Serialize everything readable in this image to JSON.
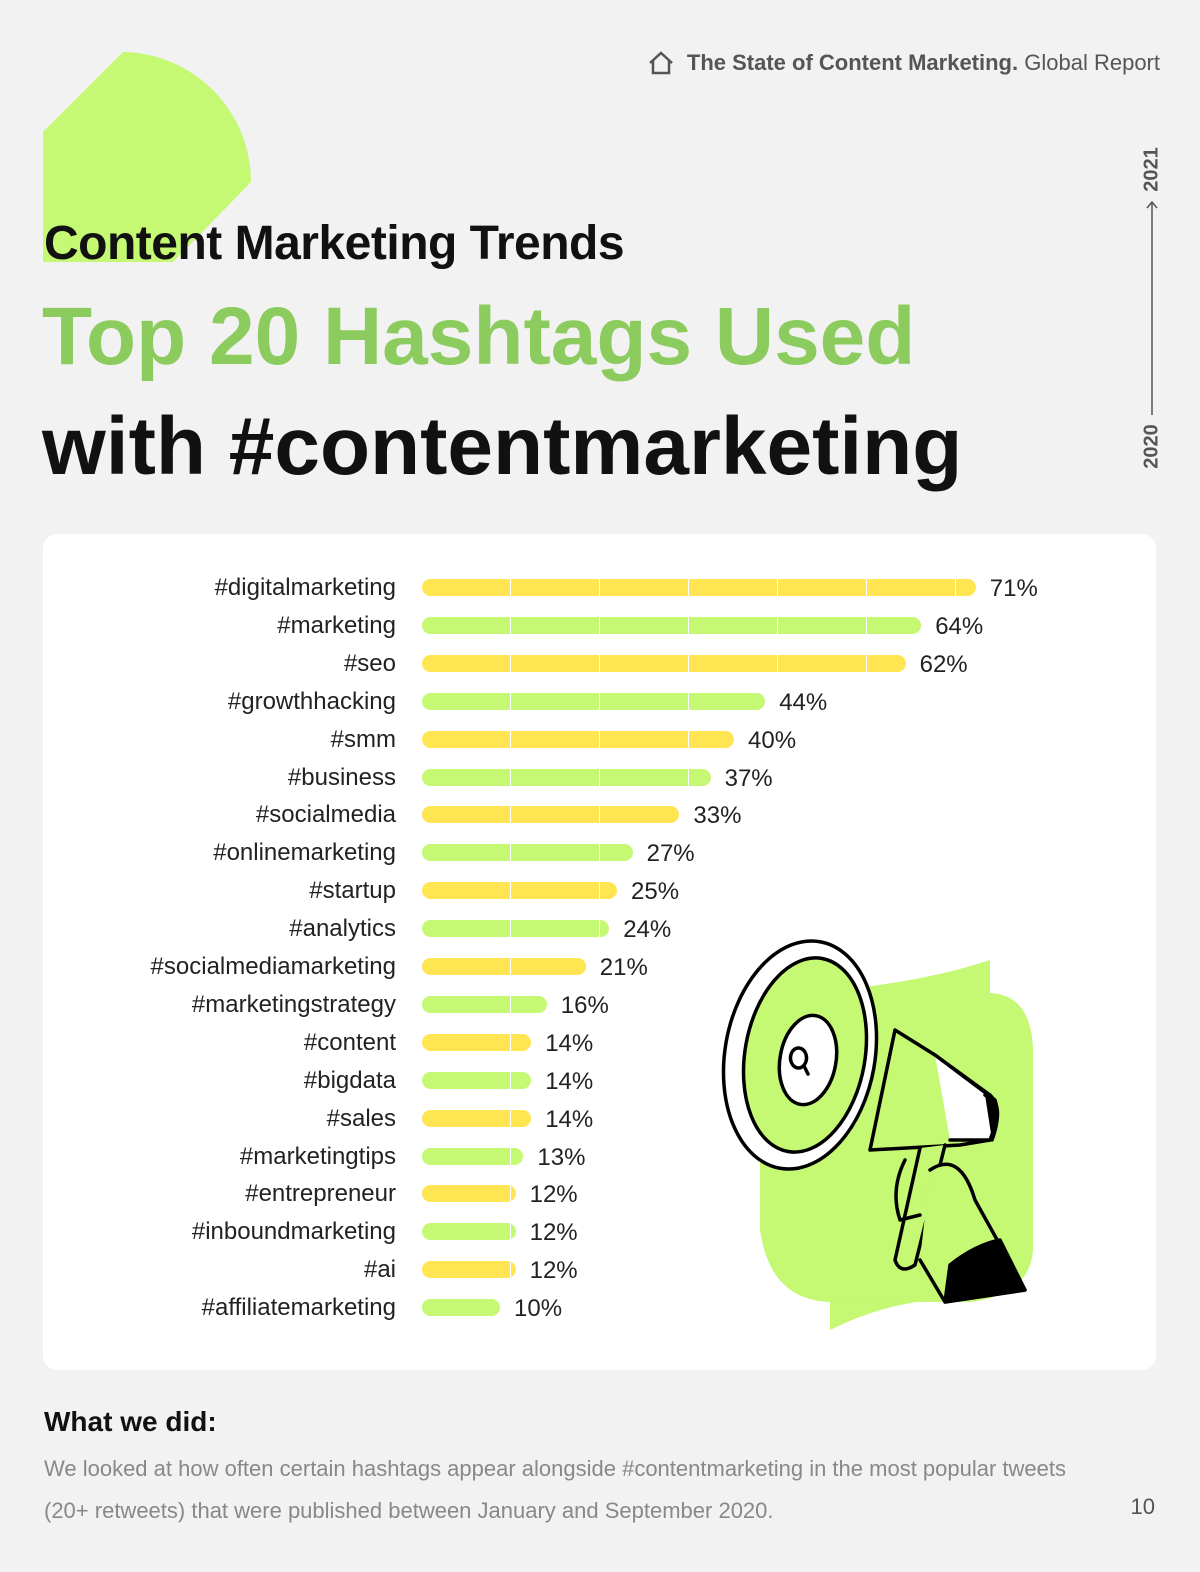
{
  "header": {
    "icon": "home-icon",
    "bold": "The State of Content Marketing.",
    "light": "Global Report"
  },
  "subtitle": "Content Marketing Trends",
  "title_line1": "Top 20 Hashtags Used",
  "title_line2": "with #contentmarketing",
  "timeline": {
    "start": "2020",
    "end": "2021"
  },
  "colors": {
    "yellow": "#ffe552",
    "green": "#c5f873",
    "title_green": "#8ccb5e",
    "background": "#f2f2f2"
  },
  "chart_data": {
    "type": "bar",
    "orientation": "horizontal",
    "categories": [
      "#digitalmarketing",
      "#marketing",
      "#seo",
      "#growthhacking",
      "#smm",
      "#business",
      "#socialmedia",
      "#onlinemarketing",
      "#startup",
      "#analytics",
      "#socialmediamarketing",
      "#marketingstrategy",
      "#content",
      "#bigdata",
      "#sales",
      "#marketingtips",
      "#entrepreneur",
      "#inboundmarketing",
      "#ai",
      "#affiliatemarketing"
    ],
    "values": [
      71,
      64,
      62,
      44,
      40,
      37,
      33,
      27,
      25,
      24,
      21,
      16,
      14,
      14,
      14,
      13,
      12,
      12,
      12,
      10
    ],
    "value_labels": [
      "71%",
      "64%",
      "62%",
      "44%",
      "40%",
      "37%",
      "33%",
      "27%",
      "25%",
      "24%",
      "21%",
      "16%",
      "14%",
      "14%",
      "14%",
      "13%",
      "12%",
      "12%",
      "12%",
      "10%"
    ],
    "bar_colors": "alternating yellow / green",
    "grid": false
  },
  "method": {
    "heading": "What we did:",
    "text": "We looked at how often certain hashtags appear alongside #contentmarketing in the most popular tweets (20+ retweets) that were published between January and September 2020."
  },
  "page_number": "10"
}
